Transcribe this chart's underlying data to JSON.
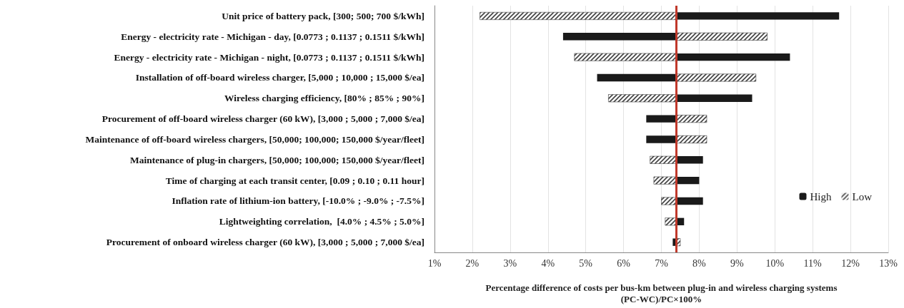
{
  "chart_data": {
    "type": "bar",
    "orientation": "horizontal",
    "xlabel": "Percentage difference of costs per bus-km between plug-in and wireless charging systems\n(PC-WC)/PC×100%",
    "categories": [
      "Unit price of battery pack, [300; 500; 700 $/kWh]",
      "Energy - electricity rate - Michigan - day, [0.0773 ; 0.1137 ; 0.1511 $/kWh]",
      "Energy - electricity rate - Michigan - night, [0.0773 ; 0.1137 ; 0.1511 $/kWh]",
      "Installation of off-board wireless charger, [5,000 ; 10,000 ; 15,000 $/ea]",
      "Wireless charging efficiency, [80% ; 85% ; 90%]",
      "Procurement of off-board wireless charger (60 kW), [3,000 ; 5,000 ; 7,000 $/ea]",
      "Maintenance of off-board wireless chargers, [50,000; 100,000; 150,000 $/year/fleet]",
      "Maintenance of plug-in chargers, [50,000; 100,000; 150,000 $/year/fleet]",
      "Time of charging at each transit center, [0.09 ; 0.10 ; 0.11 hour]",
      "Inflation rate of lithium-ion battery, [-10.0% ; -9.0% ; -7.5%]",
      "Lightweighting correlation,  [4.0% ; 4.5% ; 5.0%]",
      "Procurement of onboard wireless charger (60 kW), [3,000 ; 5,000 ; 7,000 $/ea]"
    ],
    "series": [
      {
        "name": "High",
        "color": "#1a1a1a",
        "base": [
          7.4,
          7.4,
          7.4,
          7.4,
          7.4,
          7.4,
          7.4,
          7.4,
          7.4,
          7.4,
          7.4,
          7.4
        ],
        "values": [
          4.3,
          -3.0,
          3.0,
          -2.1,
          2.0,
          -0.8,
          -0.8,
          0.7,
          0.6,
          0.7,
          0.2,
          -0.1
        ]
      },
      {
        "name": "Low",
        "color": "#404040",
        "base": [
          7.4,
          7.4,
          7.4,
          7.4,
          7.4,
          7.4,
          7.4,
          7.4,
          7.4,
          7.4,
          7.4,
          7.4
        ],
        "values": [
          -5.2,
          2.4,
          -2.7,
          2.1,
          -1.8,
          0.8,
          0.8,
          -0.7,
          -0.6,
          -0.4,
          -0.3,
          0.1
        ]
      }
    ],
    "xlim": [
      1,
      13
    ],
    "xticks": [
      {
        "value": 1,
        "label": "1%"
      },
      {
        "value": 2,
        "label": "2%"
      },
      {
        "value": 3,
        "label": "3%"
      },
      {
        "value": 4,
        "label": "4%"
      },
      {
        "value": 5,
        "label": "5%"
      },
      {
        "value": 6,
        "label": "6%"
      },
      {
        "value": 7,
        "label": "7%"
      },
      {
        "value": 8,
        "label": "8%"
      },
      {
        "value": 9,
        "label": "9%"
      },
      {
        "value": 10,
        "label": "10%"
      },
      {
        "value": 11,
        "label": "11%"
      },
      {
        "value": 12,
        "label": "12%"
      },
      {
        "value": 13,
        "label": "13%"
      }
    ],
    "ref_lines": [
      {
        "axis": "x",
        "value": 7.4,
        "color": "#c0392b"
      }
    ],
    "grid": "x",
    "legend": "right"
  }
}
